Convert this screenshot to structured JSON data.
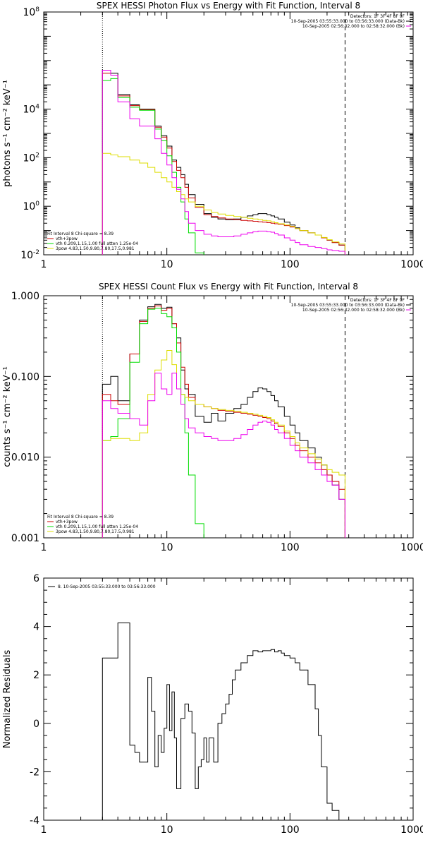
{
  "chart_data": [
    {
      "type": "line",
      "title": "SPEX HESSI Photon Flux vs Energy with Fit Function, Interval 8",
      "ylabel": "photons s⁻¹ cm⁻² keV⁻¹",
      "xlabel": "",
      "xscale": "log",
      "yscale": "log",
      "xlim": [
        1,
        1000
      ],
      "ylim": [
        0.01,
        100000000
      ],
      "xticks": [
        {
          "v": 1,
          "label": "1"
        },
        {
          "v": 10,
          "label": "10"
        },
        {
          "v": 100,
          "label": "100"
        },
        {
          "v": 1000,
          "label": "1000"
        }
      ],
      "yticks": [
        {
          "v": 0.01,
          "base": "10",
          "exp": "-2"
        },
        {
          "v": 1,
          "base": "10",
          "exp": "0"
        },
        {
          "v": 100,
          "base": "10",
          "exp": "2"
        },
        {
          "v": 10000,
          "base": "10",
          "exp": "4"
        },
        {
          "v": 100000000,
          "base": "10",
          "exp": "8"
        }
      ],
      "vlines": [
        {
          "x": 3,
          "style": "dotted"
        },
        {
          "x": 280,
          "style": "dashed"
        }
      ],
      "legend_top": [
        "Detectors: 1F 3F 4F 8F 9F",
        "10-Sep-2005 03:55:33.000 to 03:56:33.000 (Data-Bk)",
        "10-Sep-2005 02:56:32.000 to 02:58:32.000 (Bk)"
      ],
      "legend_bottom": [
        "Fit Interval 8   Chi-square = 8.39",
        "vth+3pow",
        "vth 0.209,1.15,1.00  full atten 1.25e-04",
        "3pow 4.83,1.50,9.80,7.80,17.5,0.981"
      ],
      "series": [
        {
          "name": "10-Sep-2005 03:55:33.000 to 03:56:33.000 (Data-Bk)",
          "color": "#000000",
          "edges": [
            3,
            3.5,
            4,
            5,
            6,
            7,
            8,
            9,
            10,
            11,
            12,
            13,
            14,
            15,
            17,
            20,
            23,
            26,
            30,
            35,
            40,
            45,
            50,
            55,
            60,
            65,
            70,
            75,
            80,
            90,
            100,
            110,
            120,
            140,
            160,
            180,
            200,
            220,
            250,
            280
          ],
          "values": [
            400000,
            300000,
            40000,
            15000,
            10000,
            10000,
            2000,
            800,
            300,
            80,
            40,
            20,
            8,
            3,
            1.2,
            0.5,
            0.35,
            0.3,
            0.28,
            0.3,
            0.35,
            0.4,
            0.45,
            0.5,
            0.5,
            0.45,
            0.4,
            0.35,
            0.3,
            0.22,
            0.17,
            0.13,
            0.1,
            0.08,
            0.065,
            0.05,
            0.04,
            0.032,
            0.025
          ]
        },
        {
          "name": "vth+3pow",
          "color": "#cc0000",
          "edges": [
            3,
            3.5,
            4,
            5,
            6,
            7,
            8,
            9,
            10,
            11,
            12,
            13,
            14,
            15,
            17,
            20,
            23,
            26,
            30,
            35,
            40,
            45,
            50,
            55,
            60,
            65,
            70,
            75,
            80,
            90,
            100,
            110,
            120,
            140,
            160,
            180,
            200,
            220,
            250,
            280
          ],
          "values": [
            300000,
            250000,
            35000,
            14000,
            9500,
            9500,
            1800,
            700,
            250,
            70,
            30,
            15,
            6,
            2.2,
            0.9,
            0.45,
            0.38,
            0.33,
            0.3,
            0.28,
            0.26,
            0.25,
            0.24,
            0.23,
            0.22,
            0.21,
            0.2,
            0.19,
            0.18,
            0.16,
            0.14,
            0.12,
            0.1,
            0.08,
            0.065,
            0.05,
            0.04,
            0.032,
            0.025
          ]
        },
        {
          "name": "vth 0.209,1.15,1.00  full atten 1.25e-04",
          "color": "#00dd00",
          "edges": [
            3,
            3.5,
            4,
            5,
            6,
            7,
            8,
            9,
            10,
            11,
            12,
            13,
            14,
            15,
            17,
            20
          ],
          "values": [
            150000,
            180000,
            30000,
            12000,
            9000,
            9000,
            1500,
            500,
            120,
            25,
            6,
            1.5,
            0.3,
            0.08,
            0.012
          ]
        },
        {
          "name": "3pow 4.83,1.50,9.80,7.80,17.5,0.981",
          "color": "#dddd00",
          "edges": [
            3,
            3.5,
            4,
            5,
            6,
            7,
            8,
            9,
            10,
            11,
            12,
            13,
            14,
            15,
            17,
            20,
            23,
            26,
            30,
            35,
            40,
            45,
            50,
            55,
            60,
            65,
            70,
            75,
            80,
            90,
            100,
            110,
            120,
            140,
            160,
            180,
            200,
            220,
            250,
            280
          ],
          "values": [
            150,
            130,
            110,
            80,
            60,
            40,
            25,
            15,
            10,
            6,
            4,
            3,
            2,
            1.5,
            1,
            0.7,
            0.55,
            0.48,
            0.42,
            0.38,
            0.35,
            0.32,
            0.3,
            0.28,
            0.26,
            0.25,
            0.23,
            0.21,
            0.19,
            0.17,
            0.15,
            0.12,
            0.1,
            0.08,
            0.065,
            0.052,
            0.042,
            0.034,
            0.028
          ]
        },
        {
          "name": "10-Sep-2005 02:56:32.000 to 02:58:32.000 (Bk)",
          "color": "#ee00ee",
          "edges": [
            3,
            3.5,
            4,
            5,
            6,
            7,
            8,
            9,
            10,
            11,
            12,
            13,
            14,
            15,
            17,
            20,
            23,
            26,
            30,
            35,
            40,
            45,
            50,
            55,
            60,
            65,
            70,
            75,
            80,
            90,
            100,
            110,
            120,
            140,
            160,
            180,
            200,
            220,
            250,
            280
          ],
          "values": [
            400000,
            250000,
            20000,
            4000,
            2000,
            2000,
            600,
            150,
            50,
            15,
            5,
            2,
            0.6,
            0.2,
            0.1,
            0.07,
            0.06,
            0.055,
            0.055,
            0.06,
            0.07,
            0.08,
            0.09,
            0.095,
            0.095,
            0.09,
            0.085,
            0.075,
            0.065,
            0.05,
            0.04,
            0.032,
            0.026,
            0.022,
            0.02,
            0.018,
            0.016,
            0.015,
            0.014
          ]
        }
      ]
    },
    {
      "type": "line",
      "title": "SPEX HESSI Count Flux vs Energy with Fit Function, Interval 8",
      "ylabel": "counts s⁻¹ cm⁻² keV⁻¹",
      "xlabel": "",
      "xscale": "log",
      "yscale": "log",
      "xlim": [
        1,
        1000
      ],
      "ylim": [
        0.001,
        1
      ],
      "xticks": [
        {
          "v": 1,
          "label": "1"
        },
        {
          "v": 10,
          "label": "10"
        },
        {
          "v": 100,
          "label": "100"
        },
        {
          "v": 1000,
          "label": "1000"
        }
      ],
      "yticks": [
        {
          "v": 0.001,
          "label": "0.001"
        },
        {
          "v": 0.01,
          "label": "0.010"
        },
        {
          "v": 0.1,
          "label": "0.100"
        },
        {
          "v": 1,
          "label": "1.000"
        }
      ],
      "vlines": [
        {
          "x": 3,
          "style": "dotted"
        },
        {
          "x": 280,
          "style": "dashed"
        }
      ],
      "legend_top": [
        "Detectors: 1F 3F 4F 8F 9F",
        "10-Sep-2005 03:55:33.000 to 03:56:33.000 (Data-Bk)",
        "10-Sep-2005 02:56:32.000 to 02:58:32.000 (Bk)"
      ],
      "legend_bottom": [
        "Fit Interval 8   Chi-square = 8.39",
        "vth+3pow",
        "vth 0.209,1.15,1.00  full atten 1.25e-04",
        "3pow 4.83,1.50,9.80,7.80,17.5,0.981"
      ],
      "series": [
        {
          "name": "10-Sep-2005 03:55:33.000 to 03:56:33.000 (Data-Bk)",
          "color": "#000000",
          "edges": [
            3,
            3.5,
            4,
            5,
            6,
            7,
            8,
            9,
            10,
            11,
            12,
            13,
            14,
            15,
            17,
            20,
            23,
            26,
            30,
            35,
            40,
            45,
            50,
            55,
            60,
            65,
            70,
            75,
            80,
            90,
            100,
            110,
            120,
            140,
            160,
            180,
            200,
            220,
            250,
            280
          ],
          "values": [
            0.08,
            0.1,
            0.05,
            0.19,
            0.5,
            0.73,
            0.78,
            0.7,
            0.72,
            0.45,
            0.3,
            0.12,
            0.07,
            0.06,
            0.032,
            0.027,
            0.035,
            0.028,
            0.035,
            0.04,
            0.045,
            0.055,
            0.065,
            0.072,
            0.07,
            0.065,
            0.058,
            0.05,
            0.042,
            0.032,
            0.025,
            0.02,
            0.016,
            0.013,
            0.01,
            0.008,
            0.006,
            0.0045,
            0.003
          ]
        },
        {
          "name": "vth+3pow",
          "color": "#cc0000",
          "edges": [
            3,
            3.5,
            4,
            5,
            6,
            7,
            8,
            9,
            10,
            11,
            12,
            13,
            14,
            15,
            17,
            20,
            23,
            26,
            30,
            35,
            40,
            45,
            50,
            55,
            60,
            65,
            70,
            75,
            80,
            90,
            100,
            110,
            120,
            140,
            160,
            180,
            200,
            220,
            250,
            280
          ],
          "values": [
            0.06,
            0.05,
            0.045,
            0.19,
            0.48,
            0.7,
            0.75,
            0.66,
            0.7,
            0.45,
            0.26,
            0.13,
            0.08,
            0.055,
            0.045,
            0.042,
            0.04,
            0.038,
            0.037,
            0.036,
            0.035,
            0.034,
            0.033,
            0.032,
            0.031,
            0.03,
            0.028,
            0.026,
            0.024,
            0.02,
            0.017,
            0.014,
            0.012,
            0.01,
            0.0085,
            0.007,
            0.006,
            0.005,
            0.004
          ]
        },
        {
          "name": "vth 0.209,1.15,1.00  full atten 1.25e-04",
          "color": "#00dd00",
          "edges": [
            3,
            3.5,
            4,
            5,
            6,
            7,
            8,
            9,
            10,
            11,
            12,
            13,
            14,
            15,
            17,
            20
          ],
          "values": [
            0.016,
            0.018,
            0.03,
            0.15,
            0.45,
            0.68,
            0.7,
            0.6,
            0.55,
            0.4,
            0.2,
            0.06,
            0.02,
            0.006,
            0.0015
          ]
        },
        {
          "name": "3pow 4.83,1.50,9.80,7.80,17.5,0.981",
          "color": "#dddd00",
          "edges": [
            3,
            3.5,
            4,
            5,
            6,
            7,
            8,
            9,
            10,
            11,
            12,
            13,
            14,
            15,
            17,
            20,
            23,
            26,
            30,
            35,
            40,
            45,
            50,
            55,
            60,
            65,
            70,
            75,
            80,
            90,
            100,
            110,
            120,
            140,
            160,
            180,
            200,
            220,
            250,
            280
          ],
          "values": [
            0.016,
            0.017,
            0.017,
            0.016,
            0.02,
            0.06,
            0.12,
            0.16,
            0.21,
            0.14,
            0.07,
            0.06,
            0.055,
            0.05,
            0.045,
            0.042,
            0.04,
            0.039,
            0.038,
            0.037,
            0.036,
            0.035,
            0.034,
            0.033,
            0.032,
            0.031,
            0.029,
            0.027,
            0.025,
            0.021,
            0.018,
            0.015,
            0.013,
            0.011,
            0.0095,
            0.008,
            0.007,
            0.0065,
            0.006
          ]
        },
        {
          "name": "10-Sep-2005 02:56:32.000 to 02:58:32.000 (Bk)",
          "color": "#ee00ee",
          "edges": [
            3,
            3.5,
            4,
            5,
            6,
            7,
            8,
            9,
            10,
            11,
            12,
            13,
            14,
            15,
            17,
            20,
            23,
            26,
            30,
            35,
            40,
            45,
            50,
            55,
            60,
            65,
            70,
            75,
            80,
            90,
            100,
            110,
            120,
            140,
            160,
            180,
            200,
            220,
            250,
            280
          ],
          "values": [
            0.05,
            0.04,
            0.035,
            0.03,
            0.025,
            0.05,
            0.11,
            0.07,
            0.06,
            0.11,
            0.07,
            0.045,
            0.03,
            0.023,
            0.02,
            0.018,
            0.017,
            0.016,
            0.016,
            0.017,
            0.019,
            0.022,
            0.025,
            0.027,
            0.028,
            0.027,
            0.025,
            0.022,
            0.02,
            0.017,
            0.014,
            0.012,
            0.01,
            0.0085,
            0.007,
            0.006,
            0.005,
            0.0045,
            0.003
          ]
        }
      ]
    },
    {
      "type": "line",
      "title": "",
      "ylabel": "Normalized Residuals",
      "xlabel": "",
      "xscale": "log",
      "yscale": "linear",
      "xlim": [
        1,
        1000
      ],
      "ylim": [
        -4,
        6
      ],
      "xticks": [
        {
          "v": 1,
          "label": "1"
        },
        {
          "v": 10,
          "label": "10"
        },
        {
          "v": 100,
          "label": "100"
        },
        {
          "v": 1000,
          "label": "1000"
        }
      ],
      "yticks": [
        {
          "v": -4,
          "label": "-4"
        },
        {
          "v": -2,
          "label": "-2"
        },
        {
          "v": 0,
          "label": "0"
        },
        {
          "v": 2,
          "label": "2"
        },
        {
          "v": 4,
          "label": "4"
        },
        {
          "v": 6,
          "label": "6"
        }
      ],
      "vlines": [],
      "legend_top": [],
      "legend_bottom": [],
      "legend_line": "8. 10-Sep-2005 03:55:33.000 to 03:56:33.000",
      "series": [
        {
          "name": "8. 10-Sep-2005 03:55:33.000 to 03:56:33.000",
          "color": "#000000",
          "edges": [
            3,
            4,
            5,
            5.5,
            6,
            6.5,
            7,
            7.5,
            8,
            8.5,
            9,
            9.5,
            10,
            10.5,
            11,
            11.5,
            12,
            13,
            14,
            15,
            16,
            17,
            18,
            19,
            20,
            21,
            22,
            24,
            26,
            28,
            30,
            32,
            34,
            36,
            40,
            45,
            50,
            55,
            60,
            65,
            70,
            75,
            80,
            85,
            90,
            100,
            110,
            120,
            140,
            160,
            170,
            180,
            200,
            220,
            250,
            280
          ],
          "values": [
            2.7,
            4.15,
            -0.9,
            -1.2,
            -1.6,
            -1.6,
            1.9,
            0.5,
            -1.8,
            -0.5,
            -1.2,
            -0.2,
            1.6,
            -0.3,
            1.3,
            -0.6,
            -2.7,
            0.2,
            0.8,
            0.5,
            -0.4,
            -2.7,
            -1.8,
            -1.5,
            -0.6,
            -1.6,
            -0.6,
            -1.6,
            0,
            0.4,
            0.8,
            1.2,
            1.8,
            2.2,
            2.5,
            2.8,
            3.0,
            2.95,
            3.0,
            3.0,
            3.05,
            2.95,
            3.0,
            2.9,
            2.8,
            2.7,
            2.5,
            2.2,
            1.6,
            0.6,
            -0.5,
            -1.8,
            -3.3,
            -3.6,
            -4
          ]
        }
      ]
    }
  ]
}
